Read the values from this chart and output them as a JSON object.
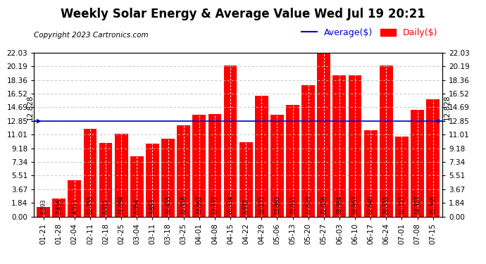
{
  "title": "Weekly Solar Energy & Average Value Wed Jul 19 20:21",
  "copyright": "Copyright 2023 Cartronics.com",
  "legend_average": "Average($)",
  "legend_daily": "Daily($)",
  "average_value": 12.828,
  "categories": [
    "01-21",
    "01-28",
    "02-04",
    "02-11",
    "02-18",
    "02-25",
    "03-04",
    "03-11",
    "03-18",
    "03-25",
    "04-01",
    "04-08",
    "04-15",
    "04-22",
    "04-29",
    "05-06",
    "05-13",
    "05-20",
    "05-27",
    "06-03",
    "06-10",
    "06-17",
    "06-24",
    "07-01",
    "07-08",
    "07-15"
  ],
  "values": [
    1.293,
    2.416,
    4.911,
    11.755,
    9.911,
    11.094,
    8.064,
    9.853,
    10.455,
    12.316,
    13.662,
    13.772,
    20.314,
    9.972,
    16.277,
    13.662,
    15.011,
    17.629,
    22.028,
    18.984,
    18.953,
    11.646,
    20.352,
    10.717,
    14.327,
    15.76
  ],
  "bar_color": "#ff0000",
  "avg_line_color": "#0000cc",
  "background_color": "#ffffff",
  "grid_color": "#bbbbbb",
  "yticks": [
    0.0,
    1.84,
    3.67,
    5.51,
    7.34,
    9.18,
    11.01,
    12.85,
    14.69,
    16.52,
    18.36,
    20.19,
    22.03
  ],
  "ylim": [
    0,
    22.03
  ],
  "title_fontsize": 12,
  "copyright_fontsize": 7.5,
  "bar_label_fontsize": 5.5,
  "axis_label_fontsize": 7.5,
  "avg_label_fontsize": 7.5,
  "legend_fontsize": 9
}
